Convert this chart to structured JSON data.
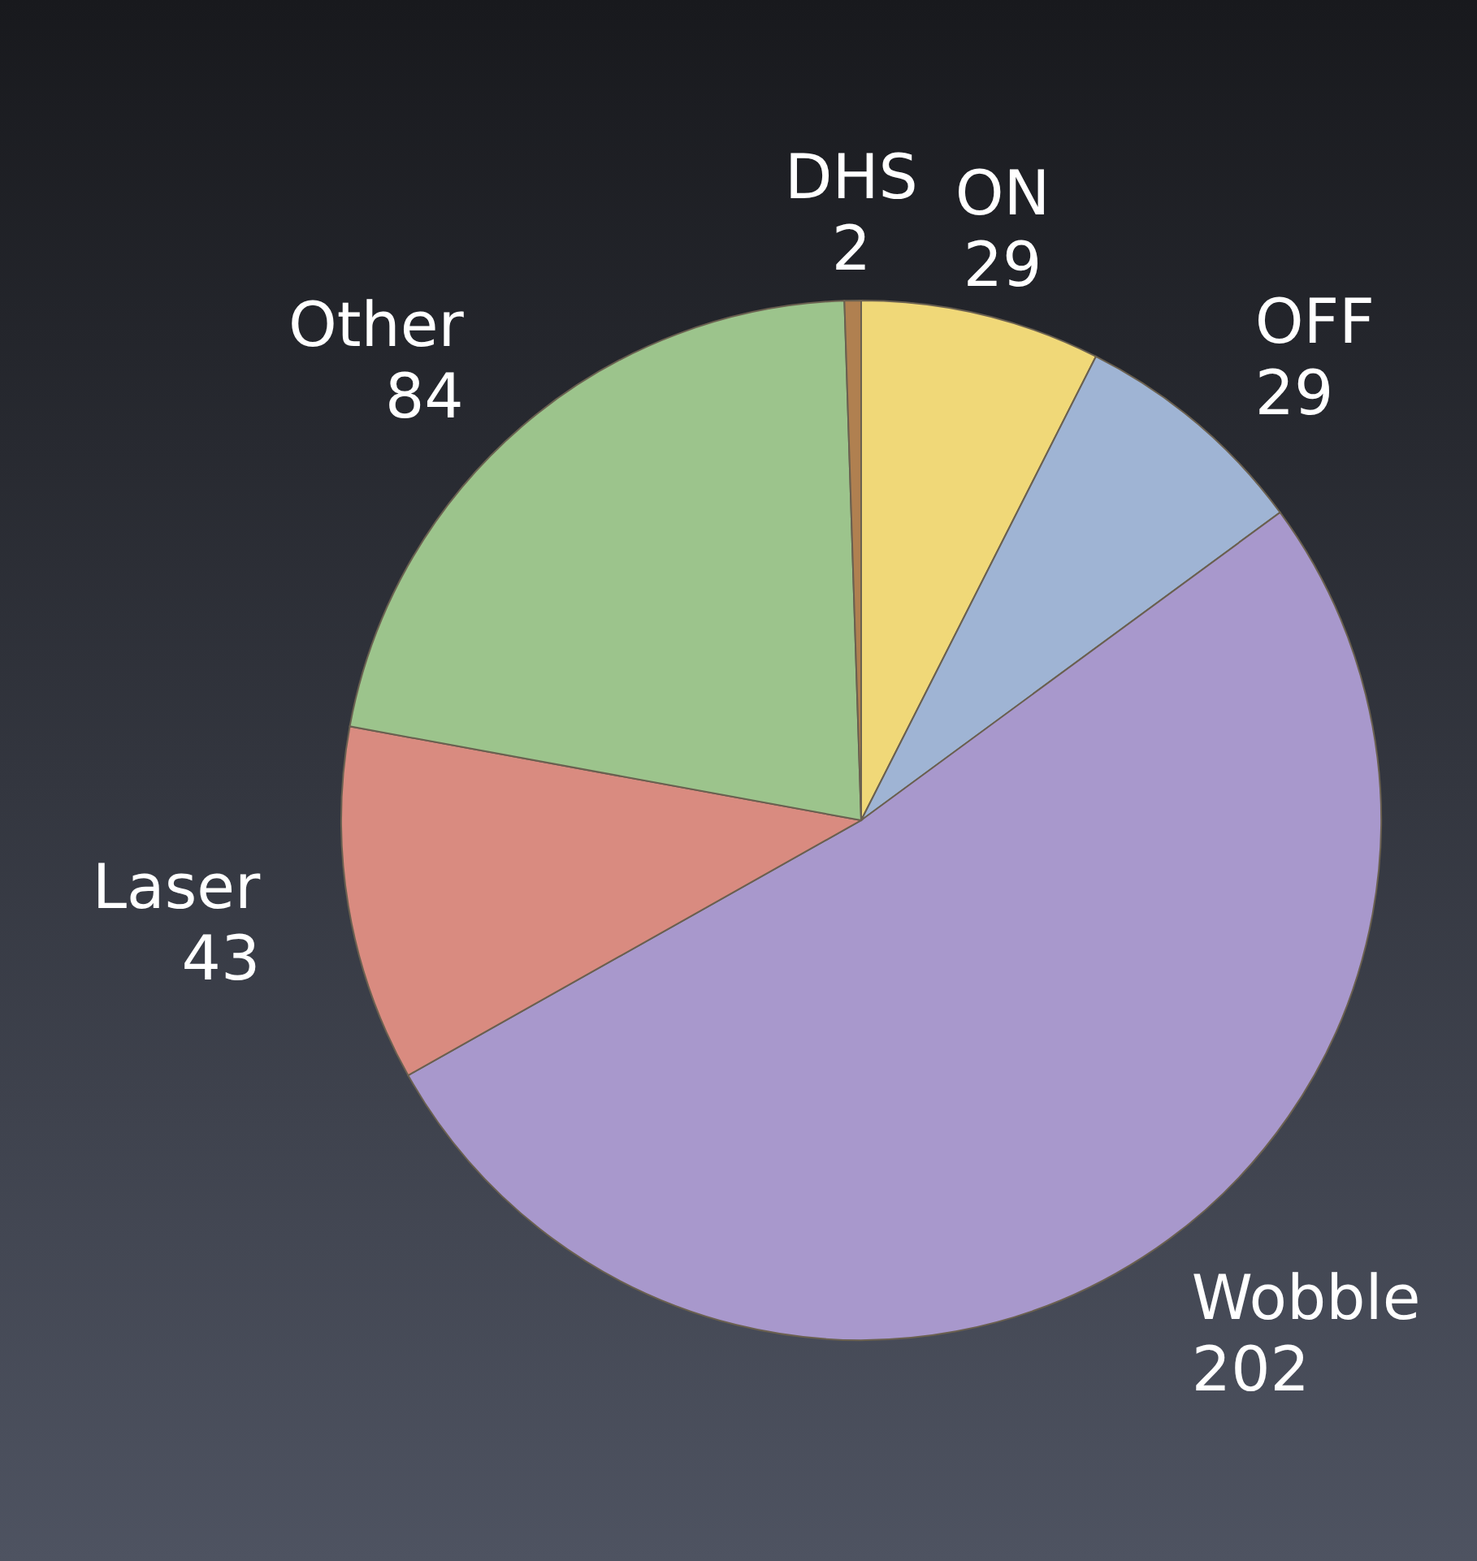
{
  "chart_data": {
    "type": "pie",
    "categories": [
      "ON",
      "OFF",
      "Wobble",
      "Laser",
      "Other",
      "DHS"
    ],
    "values": [
      29,
      29,
      202,
      43,
      84,
      2
    ],
    "colors": [
      "#f0d878",
      "#9fb4d4",
      "#a898cc",
      "#d98b80",
      "#9cc48c",
      "#b08050"
    ],
    "data_labels": true,
    "legend": false
  }
}
